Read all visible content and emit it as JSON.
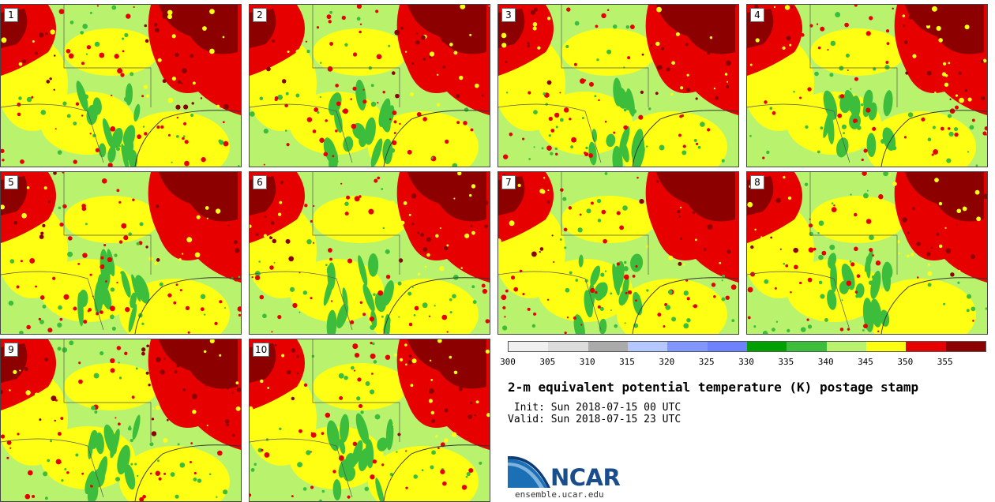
{
  "panels": [
    {
      "label": "1",
      "seed": 11
    },
    {
      "label": "2",
      "seed": 23
    },
    {
      "label": "3",
      "seed": 37
    },
    {
      "label": "4",
      "seed": 41
    },
    {
      "label": "5",
      "seed": 53
    },
    {
      "label": "6",
      "seed": 67
    },
    {
      "label": "7",
      "seed": 71
    },
    {
      "label": "8",
      "seed": 83
    },
    {
      "label": "9",
      "seed": 97
    },
    {
      "label": "10",
      "seed": 101
    }
  ],
  "colorbar": {
    "colors": [
      "#f0f0f0",
      "#dcdcdc",
      "#aaaaaa",
      "#b4c8ff",
      "#8296ff",
      "#6e82ff",
      "#00a000",
      "#3cbe3c",
      "#b9f36e",
      "#ffff14",
      "#e60000",
      "#8c0000"
    ],
    "ticks": [
      "300",
      "305",
      "310",
      "315",
      "320",
      "325",
      "330",
      "335",
      "340",
      "345",
      "350",
      "355"
    ]
  },
  "title": "2-m equivalent potential temperature (K) postage stamp",
  "init_line": " Init: Sun 2018-07-15 00 UTC",
  "valid_line": "Valid: Sun 2018-07-15 23 UTC",
  "logo": {
    "text": "NCAR",
    "url": "ensemble.ucar.edu",
    "icon": "ncar-swoosh-icon"
  }
}
